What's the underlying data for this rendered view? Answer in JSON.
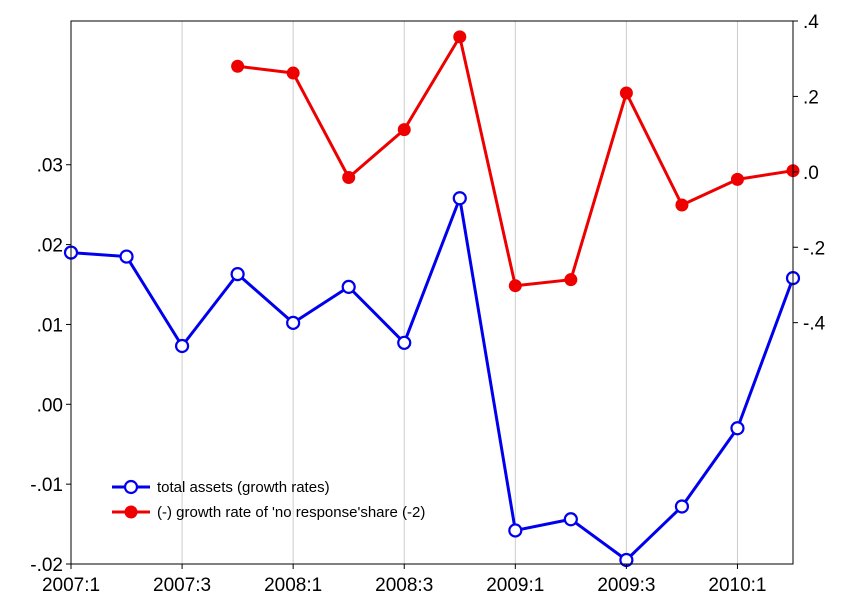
{
  "chart_data": {
    "type": "line",
    "categories": [
      "2007:1",
      "2007:2",
      "2007:3",
      "2007:4",
      "2008:1",
      "2008:2",
      "2008:3",
      "2008:4",
      "2009:1",
      "2009:2",
      "2009:3",
      "2009:4",
      "2010:1",
      "2010:2"
    ],
    "x_tick_labels": [
      "2007:1",
      "2007:3",
      "2008:1",
      "2008:3",
      "2009:1",
      "2009:3",
      "2010:1"
    ],
    "left_axis": {
      "ylim": [
        -0.02,
        0.048
      ],
      "tick_values": [
        -0.02,
        -0.01,
        0.0,
        0.01,
        0.02,
        0.03
      ],
      "tick_labels": [
        "-.02",
        "-.01",
        ".00",
        ".01",
        ".02",
        ".03"
      ]
    },
    "right_axis": {
      "ylim": [
        -1.04,
        0.4
      ],
      "tick_values": [
        -0.4,
        -0.2,
        0.0,
        0.2,
        0.4
      ],
      "tick_labels": [
        "-.4",
        "-.2",
        ".0",
        ".2",
        ".4"
      ]
    },
    "grid": "vertical",
    "legend_position": "bottom-left",
    "series": [
      {
        "name": "total assets (growth rates)",
        "axis": "left",
        "color": "#0000ee",
        "marker": "open-circle",
        "values": [
          0.019,
          0.0185,
          0.0073,
          0.0163,
          0.0102,
          0.0147,
          0.0077,
          0.0258,
          -0.0158,
          -0.0144,
          -0.0195,
          -0.0128,
          -0.003,
          0.0158
        ]
      },
      {
        "name": "(-) growth rate of 'no response'share (-2)",
        "axis": "right",
        "color": "#ee0000",
        "marker": "filled-circle",
        "values": [
          null,
          null,
          null,
          0.28,
          0.262,
          -0.015,
          0.112,
          0.358,
          -0.302,
          -0.286,
          0.209,
          -0.088,
          -0.02,
          0.003
        ]
      }
    ]
  }
}
